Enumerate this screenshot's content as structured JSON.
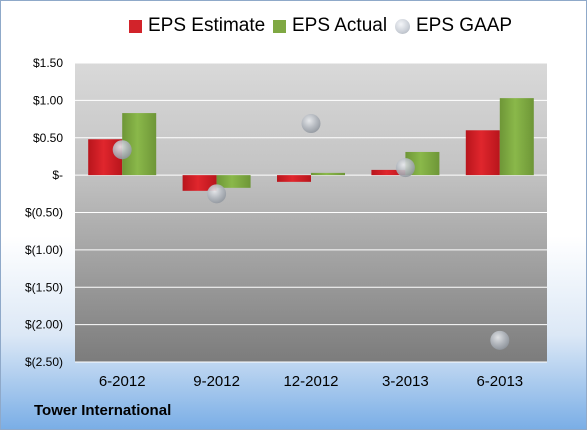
{
  "company": "Tower International",
  "colors": {
    "estimate": "#d2232a",
    "actual": "#7fa843",
    "gaap": "#a3a8b0"
  },
  "chart_data": {
    "type": "bar",
    "categories": [
      "6-2012",
      "9-2012",
      "12-2012",
      "3-2013",
      "6-2013"
    ],
    "series": [
      {
        "name": "EPS Estimate",
        "type": "bar",
        "values": [
          0.48,
          -0.21,
          -0.09,
          0.07,
          0.6
        ]
      },
      {
        "name": "EPS Actual",
        "type": "bar",
        "values": [
          0.83,
          -0.17,
          0.03,
          0.31,
          1.03
        ]
      },
      {
        "name": "EPS GAAP",
        "type": "scatter",
        "values": [
          0.34,
          -0.25,
          0.69,
          0.1,
          -2.21
        ]
      }
    ],
    "ylim": [
      -2.5,
      1.5
    ],
    "yticks": [
      1.5,
      1.0,
      0.5,
      0,
      -0.5,
      -1.0,
      -1.5,
      -2.0,
      -2.5
    ],
    "ytick_labels": [
      "$1.50",
      "$1.00",
      "$0.50",
      "$-",
      "$(0.50)",
      "$(1.00)",
      "$(1.50)",
      "$(2.00)",
      "$(2.50)"
    ],
    "grid": true,
    "legend": "top"
  }
}
